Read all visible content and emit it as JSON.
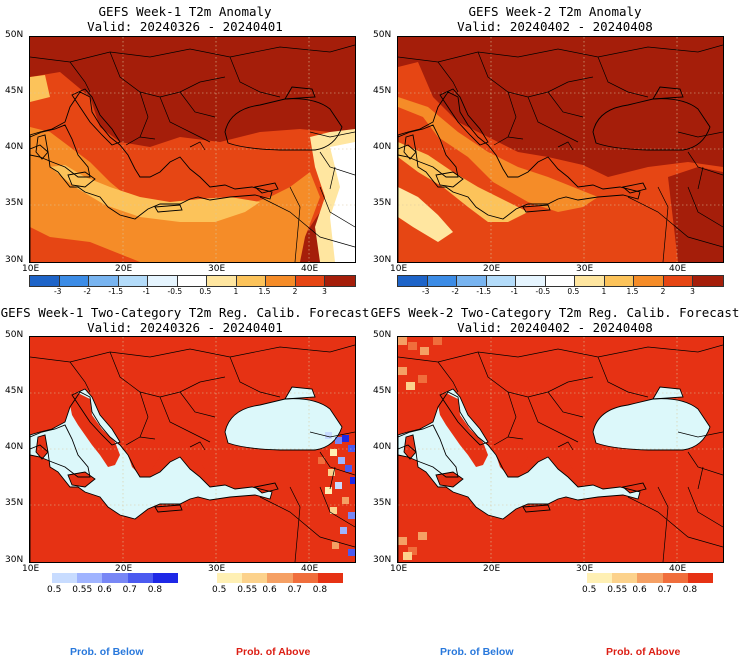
{
  "panels": [
    {
      "title": "GEFS Week-1 T2m Anomaly",
      "valid": "Valid: 20240326 - 20240401"
    },
    {
      "title": "GEFS Week-2 T2m Anomaly",
      "valid": "Valid: 20240402 - 20240408"
    },
    {
      "title": "GEFS Week-1 Two-Category T2m Reg. Calib. Forecast",
      "valid": "Valid: 20240326 - 20240401"
    },
    {
      "title": "GEFS Week-2 Two-Category T2m Reg. Calib. Forecast",
      "valid": "Valid: 20240402 - 20240408"
    }
  ],
  "axes": {
    "lat_labels": [
      "50N",
      "45N",
      "40N",
      "35N",
      "30N"
    ],
    "lon_labels": [
      "10E",
      "20E",
      "30E",
      "40E"
    ]
  },
  "anomaly_scale": {
    "labels": [
      "-3",
      "-2",
      "-1.5",
      "-1",
      "-0.5",
      "0.5",
      "1",
      "1.5",
      "2",
      "3"
    ],
    "colors": [
      "#1e64c8",
      "#3c8ce6",
      "#78b4f0",
      "#b4dcfa",
      "#e6f5ff",
      "#ffffff",
      "#ffe6a0",
      "#fcc35a",
      "#f58c28",
      "#e64614",
      "#a51e0a"
    ]
  },
  "prob_scale": {
    "below_labels": [
      "0.5",
      "0.55",
      "0.6",
      "0.7",
      "0.8"
    ],
    "below_colors": [
      "#c8dcff",
      "#a0b4ff",
      "#7887f5",
      "#4b5af0",
      "#1e28e6"
    ],
    "above_labels": [
      "0.5",
      "0.55",
      "0.6",
      "0.7",
      "0.8"
    ],
    "above_colors": [
      "#fff0b4",
      "#fcd28c",
      "#f5a064",
      "#f06e3c",
      "#e63214"
    ],
    "below_name": "Prob. of Below",
    "above_name": "Prob. of Above",
    "below_name_color": "#2878dc",
    "above_name_color": "#dc1e14"
  },
  "colors": {
    "sea_prob": "#dcf8fa",
    "land_prob": "#e63214",
    "anom_dark": "#a51e0a",
    "anom_mid": "#e64614",
    "anom_light": "#f58c28",
    "anom_pale": "#fcc35a",
    "anom_cream": "#ffe6a0"
  }
}
